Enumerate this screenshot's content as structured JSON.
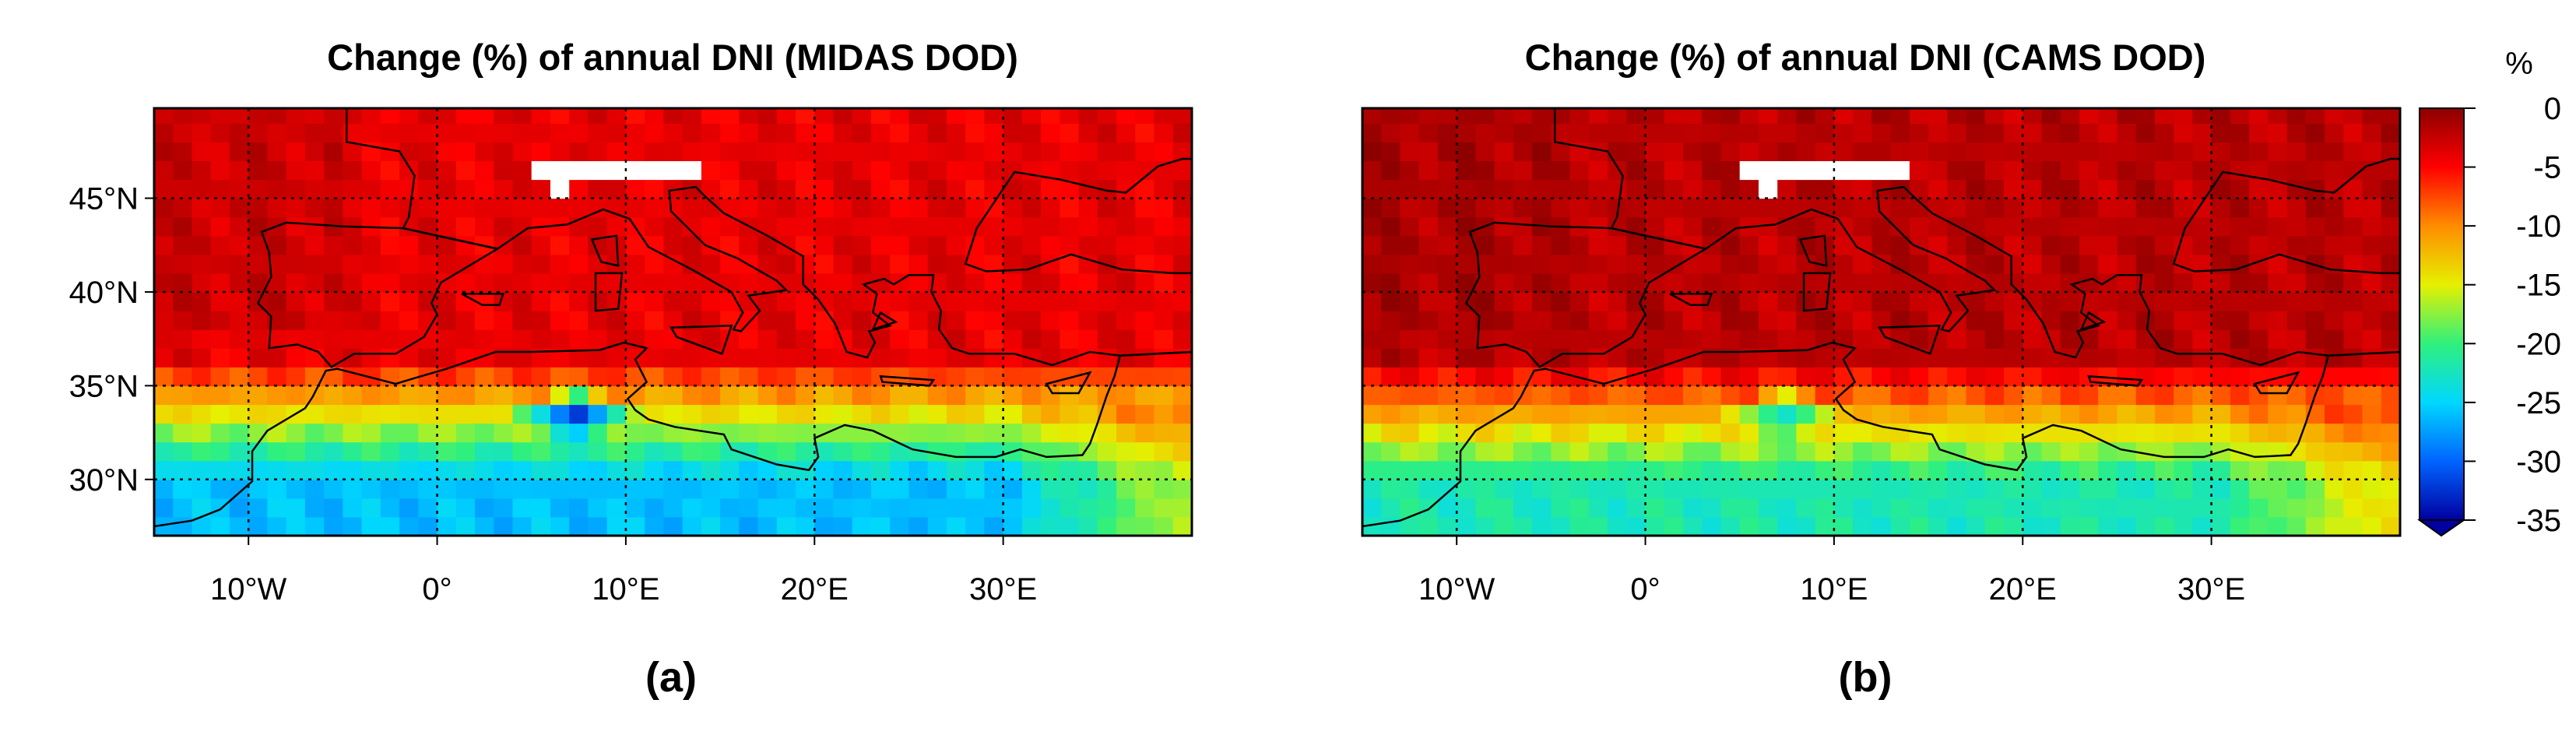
{
  "figure": {
    "panels": [
      {
        "id": "a",
        "title": "Change (%) of annual DNI (MIDAS DOD)",
        "label": "(a)",
        "dataset": "MIDAS",
        "field": {
          "baseline": -4,
          "africa_peak": -26,
          "africa_core_peak": -34,
          "alps_missing": true,
          "note": "Strong reduction over Sahara (down to about -30 to -35 % over Algeria/Tunisia), moderate (-5 to -12 %) over Mediterranean and southern Europe"
        }
      },
      {
        "id": "b",
        "title": "Change (%) of annual DNI (CAMS DOD)",
        "label": "(b)",
        "dataset": "CAMS",
        "field": {
          "baseline": -2,
          "africa_peak": -22,
          "africa_core_peak": -24,
          "alps_missing": true,
          "note": "Weaker reduction; about -20 to -25 % over northern Africa, 0 to -7 % over Europe"
        }
      }
    ],
    "colorbar": {
      "unit": "%",
      "ticks": [
        "0",
        "-5",
        "-10",
        "-15",
        "-20",
        "-25",
        "-30",
        "-35"
      ],
      "min": -35,
      "max": 0,
      "extend": "lower",
      "colors": [
        "#8c0000",
        "#ff0000",
        "#ff8c00",
        "#e6f000",
        "#2ff07d",
        "#00d7ff",
        "#0064ff",
        "#0000a0"
      ]
    },
    "axes": {
      "lon_range": [
        -15,
        40
      ],
      "lat_range": [
        27,
        49.8
      ],
      "lon_ticks": [
        -10,
        0,
        10,
        20,
        30
      ],
      "lon_labels": [
        "10°W",
        "0°",
        "10°E",
        "20°E",
        "30°E"
      ],
      "lat_ticks": [
        45,
        40,
        35,
        30
      ],
      "lat_labels": [
        "45°N",
        "40°N",
        "35°N",
        "30°N"
      ],
      "grid": "dotted"
    }
  }
}
